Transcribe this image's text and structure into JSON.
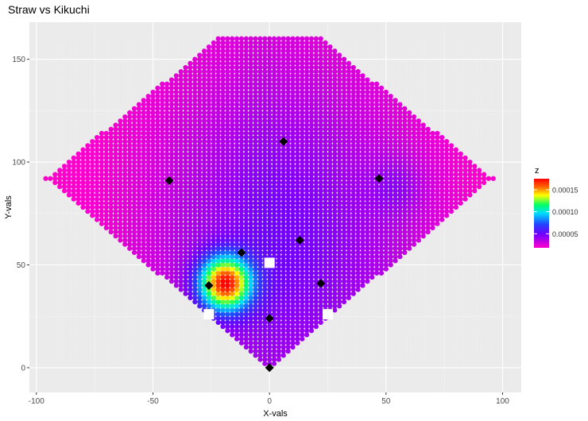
{
  "chart_data": {
    "type": "heatmap",
    "title": "Straw vs Kikuchi",
    "xlabel": "X-vals",
    "ylabel": "Y-vals",
    "xlim": [
      -103,
      108
    ],
    "ylim": [
      -12,
      168
    ],
    "x_ticks": [
      -100,
      -50,
      0,
      50,
      100
    ],
    "y_ticks": [
      0,
      50,
      100,
      150
    ],
    "grid": true,
    "legend": {
      "title": "z",
      "placement": "right",
      "range": [
        1.8e-05,
        0.000175
      ],
      "ticks": [
        5e-05,
        0.0001,
        0.00015
      ],
      "tick_labels": [
        "0.00005",
        "0.00010",
        "0.00015"
      ],
      "colors": [
        "#ff00cc",
        "#6e00ff",
        "#2244ff",
        "#00ddff",
        "#00ff66",
        "#ffff00",
        "#ff6600",
        "#ff0000"
      ]
    },
    "field_region": {
      "apex": [
        0,
        0
      ],
      "left_corner": [
        -96,
        92
      ],
      "right_corner": [
        96,
        92
      ],
      "top_y": 161,
      "top_half_width": 21
    },
    "hotspots": [
      {
        "x": -19,
        "y": 41,
        "peak": 0.000175
      },
      {
        "x": 55,
        "y": 88,
        "peak": 5.2e-05
      }
    ],
    "diamond_points": [
      {
        "x": 6,
        "y": 110
      },
      {
        "x": -43,
        "y": 91
      },
      {
        "x": 47,
        "y": 92
      },
      {
        "x": 13,
        "y": 62
      },
      {
        "x": -12,
        "y": 56
      },
      {
        "x": -26,
        "y": 40
      },
      {
        "x": 22,
        "y": 41
      },
      {
        "x": 0,
        "y": 24
      },
      {
        "x": 0,
        "y": 0
      }
    ],
    "square_points": [
      {
        "x": 0,
        "y": 51
      },
      {
        "x": -26,
        "y": 26
      },
      {
        "x": 25,
        "y": 26
      }
    ]
  }
}
